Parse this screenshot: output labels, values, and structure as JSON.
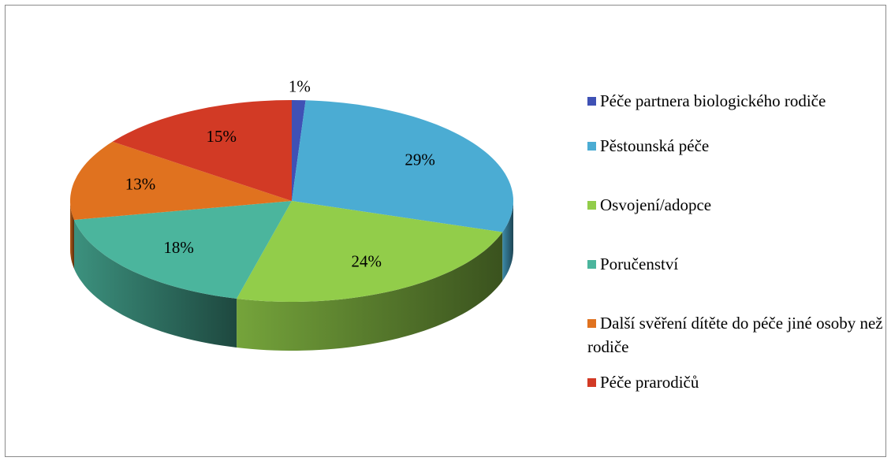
{
  "chart_data": {
    "type": "pie",
    "categories": [
      "Péče partnera biologického rodiče",
      "Pěstounská péče",
      "Osvojení/adopce",
      "Poručenství",
      "Další svěření dítěte do péče jiné osoby než rodiče",
      "Péče prarodičů"
    ],
    "values": [
      1,
      29,
      24,
      18,
      13,
      15
    ],
    "value_labels": [
      "1%",
      "29%",
      "24%",
      "18%",
      "13%",
      "15%"
    ],
    "colors": [
      "#3f51b5",
      "#4bacd3",
      "#92cd4a",
      "#4bb59d",
      "#e0721f",
      "#d23a25"
    ],
    "legend": "right"
  }
}
